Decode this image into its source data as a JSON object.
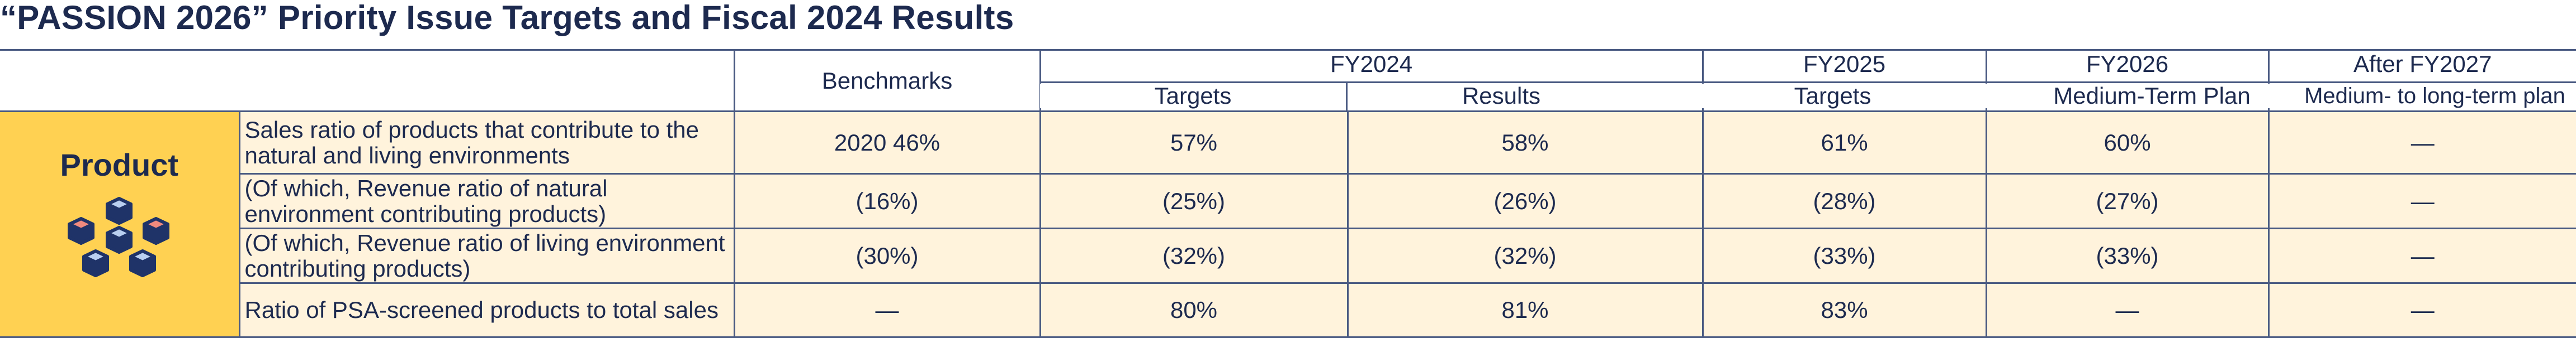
{
  "title": "“PASSION 2026” Priority Issue Targets and Fiscal 2024 Results",
  "headers": {
    "benchmarks": "Benchmarks",
    "fy2024": "FY2024",
    "fy2024_targets": "Targets",
    "fy2024_results": "Results",
    "fy2025": "FY2025",
    "fy2025_targets": "Targets",
    "fy2026": "FY2026",
    "fy2026_plan": "Medium-Term Plan",
    "after_fy2027": "After FY2027",
    "after_plan": "Medium- to long-term plan"
  },
  "category": {
    "label": "Product",
    "icon": "cubes-icon"
  },
  "rows": [
    {
      "label": "Sales ratio of products that contribute to the natural and living environments",
      "benchmark": "2020 46%",
      "fy2024_target": "57%",
      "fy2024_result": "58%",
      "fy2025_target": "61%",
      "fy2026_plan": "60%",
      "after_plan": "—"
    },
    {
      "label": "(Of which, Revenue ratio of natural environment contributing products)",
      "benchmark": "(16%)",
      "fy2024_target": "(25%)",
      "fy2024_result": "(26%)",
      "fy2025_target": "(28%)",
      "fy2026_plan": "(27%)",
      "after_plan": "—"
    },
    {
      "label": "(Of which, Revenue ratio of living environment contributing products)",
      "benchmark": "(30%)",
      "fy2024_target": "(32%)",
      "fy2024_result": "(32%)",
      "fy2025_target": "(33%)",
      "fy2026_plan": "(33%)",
      "after_plan": "—"
    },
    {
      "label": "Ratio of PSA-screened products to total sales",
      "benchmark": "—",
      "fy2024_target": "80%",
      "fy2024_result": "81%",
      "fy2025_target": "83%",
      "fy2026_plan": "—",
      "after_plan": "—"
    }
  ],
  "colors": {
    "text": "#1d2a4f",
    "border": "#4a5a82",
    "category_bg": "#ffd152",
    "row_bg": "#fff3dc",
    "cube_navy": "#1f3368",
    "cube_light": "#b9cff0",
    "cube_coral": "#f08a7e"
  }
}
